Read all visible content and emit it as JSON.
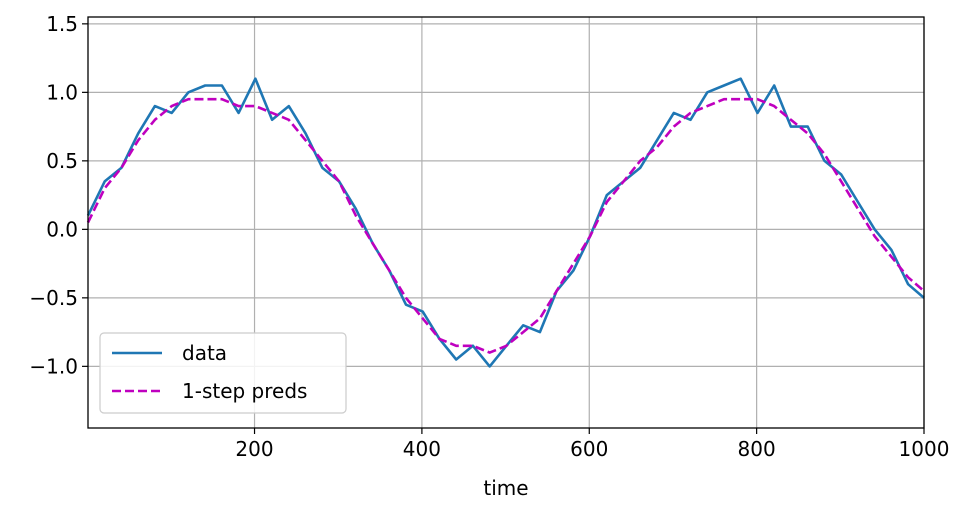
{
  "chart_data": {
    "type": "line",
    "title": "",
    "xlabel": "time",
    "ylabel": "",
    "xlim": [
      1,
      1000
    ],
    "ylim": [
      -1.45,
      1.55
    ],
    "grid": true,
    "legend_position": "lower-left",
    "x_ticks": [
      200,
      400,
      600,
      800,
      1000
    ],
    "x_tick_labels": [
      "200",
      "400",
      "600",
      "800",
      "1000"
    ],
    "y_ticks": [
      -1.0,
      -0.5,
      0.0,
      0.5,
      1.0,
      1.5
    ],
    "y_tick_labels": [
      "−1.0",
      "−0.5",
      "0.0",
      "0.5",
      "1.0",
      "1.5"
    ],
    "series": [
      {
        "name": "data",
        "color": "#1f77b4",
        "style": "solid",
        "x": [
          1,
          21,
          41,
          61,
          81,
          101,
          121,
          141,
          161,
          181,
          201,
          221,
          241,
          261,
          281,
          301,
          321,
          341,
          361,
          381,
          401,
          421,
          441,
          461,
          481,
          501,
          521,
          541,
          561,
          581,
          601,
          621,
          641,
          661,
          681,
          701,
          721,
          741,
          761,
          781,
          801,
          821,
          841,
          861,
          881,
          901,
          921,
          941,
          961,
          981,
          1000
        ],
        "y": [
          0.1,
          0.35,
          0.45,
          0.7,
          0.9,
          0.85,
          1.0,
          1.05,
          1.05,
          0.85,
          1.1,
          0.8,
          0.9,
          0.7,
          0.45,
          0.35,
          0.15,
          -0.1,
          -0.3,
          -0.55,
          -0.6,
          -0.8,
          -0.95,
          -0.85,
          -1.0,
          -0.85,
          -0.7,
          -0.75,
          -0.45,
          -0.3,
          -0.05,
          0.25,
          0.35,
          0.45,
          0.65,
          0.85,
          0.8,
          1.0,
          1.05,
          1.1,
          0.85,
          1.05,
          0.75,
          0.75,
          0.5,
          0.4,
          0.2,
          0.0,
          -0.15,
          -0.4,
          -0.5
        ]
      },
      {
        "name": "1-step preds",
        "color": "#bf00bf",
        "style": "dashed",
        "x": [
          1,
          21,
          41,
          61,
          81,
          101,
          121,
          141,
          161,
          181,
          201,
          221,
          241,
          261,
          281,
          301,
          321,
          341,
          361,
          381,
          401,
          421,
          441,
          461,
          481,
          501,
          521,
          541,
          561,
          581,
          601,
          621,
          641,
          661,
          681,
          701,
          721,
          741,
          761,
          781,
          801,
          821,
          841,
          861,
          881,
          901,
          921,
          941,
          961,
          981,
          1000
        ],
        "y": [
          0.05,
          0.3,
          0.45,
          0.65,
          0.8,
          0.9,
          0.95,
          0.95,
          0.95,
          0.9,
          0.9,
          0.85,
          0.8,
          0.65,
          0.5,
          0.35,
          0.1,
          -0.1,
          -0.3,
          -0.5,
          -0.65,
          -0.8,
          -0.85,
          -0.85,
          -0.9,
          -0.85,
          -0.75,
          -0.65,
          -0.45,
          -0.25,
          -0.05,
          0.2,
          0.35,
          0.5,
          0.6,
          0.75,
          0.85,
          0.9,
          0.95,
          0.95,
          0.95,
          0.9,
          0.8,
          0.7,
          0.55,
          0.35,
          0.15,
          -0.05,
          -0.2,
          -0.35,
          -0.45
        ]
      }
    ]
  }
}
